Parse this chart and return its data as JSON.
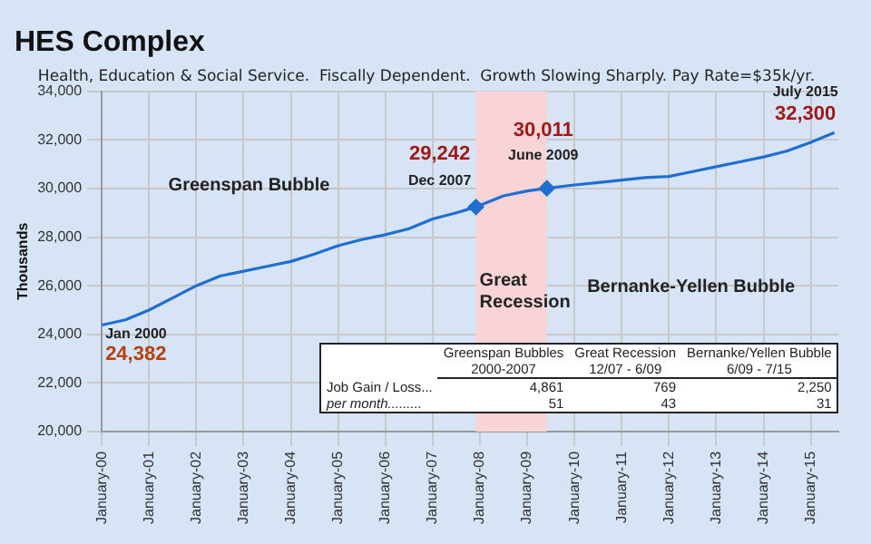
{
  "chart_data": {
    "type": "line",
    "title": "HES Complex",
    "subtitle": "Health, Education & Social Service.  Fiscally Dependent.  Growth Slowing Sharply. Pay Rate=$35k/yr.",
    "ylabel": "Thousands",
    "x": [
      "2000-01",
      "2000-07",
      "2001-01",
      "2001-07",
      "2002-01",
      "2002-07",
      "2003-01",
      "2003-07",
      "2004-01",
      "2004-07",
      "2005-01",
      "2005-07",
      "2006-01",
      "2006-07",
      "2007-01",
      "2007-07",
      "2007-12",
      "2008-07",
      "2009-01",
      "2009-06",
      "2010-01",
      "2010-07",
      "2011-01",
      "2011-07",
      "2012-01",
      "2012-07",
      "2013-01",
      "2013-07",
      "2014-01",
      "2014-07",
      "2015-01",
      "2015-07"
    ],
    "series": [
      {
        "color": "#1f6fd0",
        "marker": "none",
        "values": [
          24382,
          24600,
          25000,
          25500,
          26000,
          26400,
          26600,
          26800,
          27000,
          27300,
          27650,
          27900,
          28100,
          28350,
          28750,
          29000,
          29242,
          29700,
          29900,
          30011,
          30150,
          30250,
          30350,
          30450,
          30500,
          30700,
          30900,
          31100,
          31300,
          31550,
          31900,
          32300
        ]
      },
      {
        "type": "scatter",
        "color": "#1f6fd0",
        "marker": "diamond",
        "x": [
          "2007-12",
          "2009-06"
        ],
        "values": [
          29242,
          30011
        ]
      }
    ],
    "xlim": [
      "2000-01",
      "2015-08"
    ],
    "xticks": [
      {
        "value": "2000-01",
        "label": "January-00"
      },
      {
        "value": "2001-01",
        "label": "January-01"
      },
      {
        "value": "2002-01",
        "label": "January-02"
      },
      {
        "value": "2003-01",
        "label": "January-03"
      },
      {
        "value": "2004-01",
        "label": "January-04"
      },
      {
        "value": "2005-01",
        "label": "January-05"
      },
      {
        "value": "2006-01",
        "label": "January-06"
      },
      {
        "value": "2007-01",
        "label": "January-07"
      },
      {
        "value": "2008-01",
        "label": "January-08"
      },
      {
        "value": "2009-01",
        "label": "January-09"
      },
      {
        "value": "2010-01",
        "label": "January-10"
      },
      {
        "value": "2011-01",
        "label": "January-11"
      },
      {
        "value": "2012-01",
        "label": "January-12"
      },
      {
        "value": "2013-01",
        "label": "January-13"
      },
      {
        "value": "2014-01",
        "label": "January-14"
      },
      {
        "value": "2015-01",
        "label": "January-15"
      }
    ],
    "ylim": [
      20000,
      34000
    ],
    "yticks": [
      {
        "value": 20000,
        "label": "20,000"
      },
      {
        "value": 22000,
        "label": "22,000"
      },
      {
        "value": 24000,
        "label": "24,000"
      },
      {
        "value": 26000,
        "label": "26,000"
      },
      {
        "value": 28000,
        "label": "28,000"
      },
      {
        "value": 30000,
        "label": "30,000"
      },
      {
        "value": 32000,
        "label": "32,000"
      },
      {
        "value": 34000,
        "label": "34,000"
      }
    ],
    "grid": true,
    "legend": false,
    "bands": [
      {
        "axis": "x",
        "from": "2007-12",
        "to": "2009-06",
        "label": "Great Recession",
        "color": "#f8d4d6"
      }
    ],
    "annotations": [
      {
        "text": "Jan 2000",
        "x": "2000-01",
        "y": 24382
      },
      {
        "text": "24,382",
        "x": "2000-01",
        "y": 24382
      },
      {
        "text": "Dec 2007",
        "x": "2007-12",
        "y": 29242
      },
      {
        "text": "29,242",
        "x": "2007-12",
        "y": 29242
      },
      {
        "text": "June 2009",
        "x": "2009-06",
        "y": 30011
      },
      {
        "text": "30,011",
        "x": "2009-06",
        "y": 30011
      },
      {
        "text": "July 2015",
        "x": "2015-07",
        "y": 32300
      },
      {
        "text": "32,300",
        "x": "2015-07",
        "y": 32300
      },
      "Greenspan Bubble",
      "Bernanke-Yellen Bubble",
      "Greenspan Bubbles",
      "2000-2007",
      "Great Recession",
      "12/07 - 6/09",
      "Bernanke/Yellen Bubble",
      "6/09 - 7/15",
      "Job Gain / Loss...",
      "4,861",
      "769",
      "2,250",
      "per month.........",
      "51",
      "43",
      "31"
    ]
  }
}
